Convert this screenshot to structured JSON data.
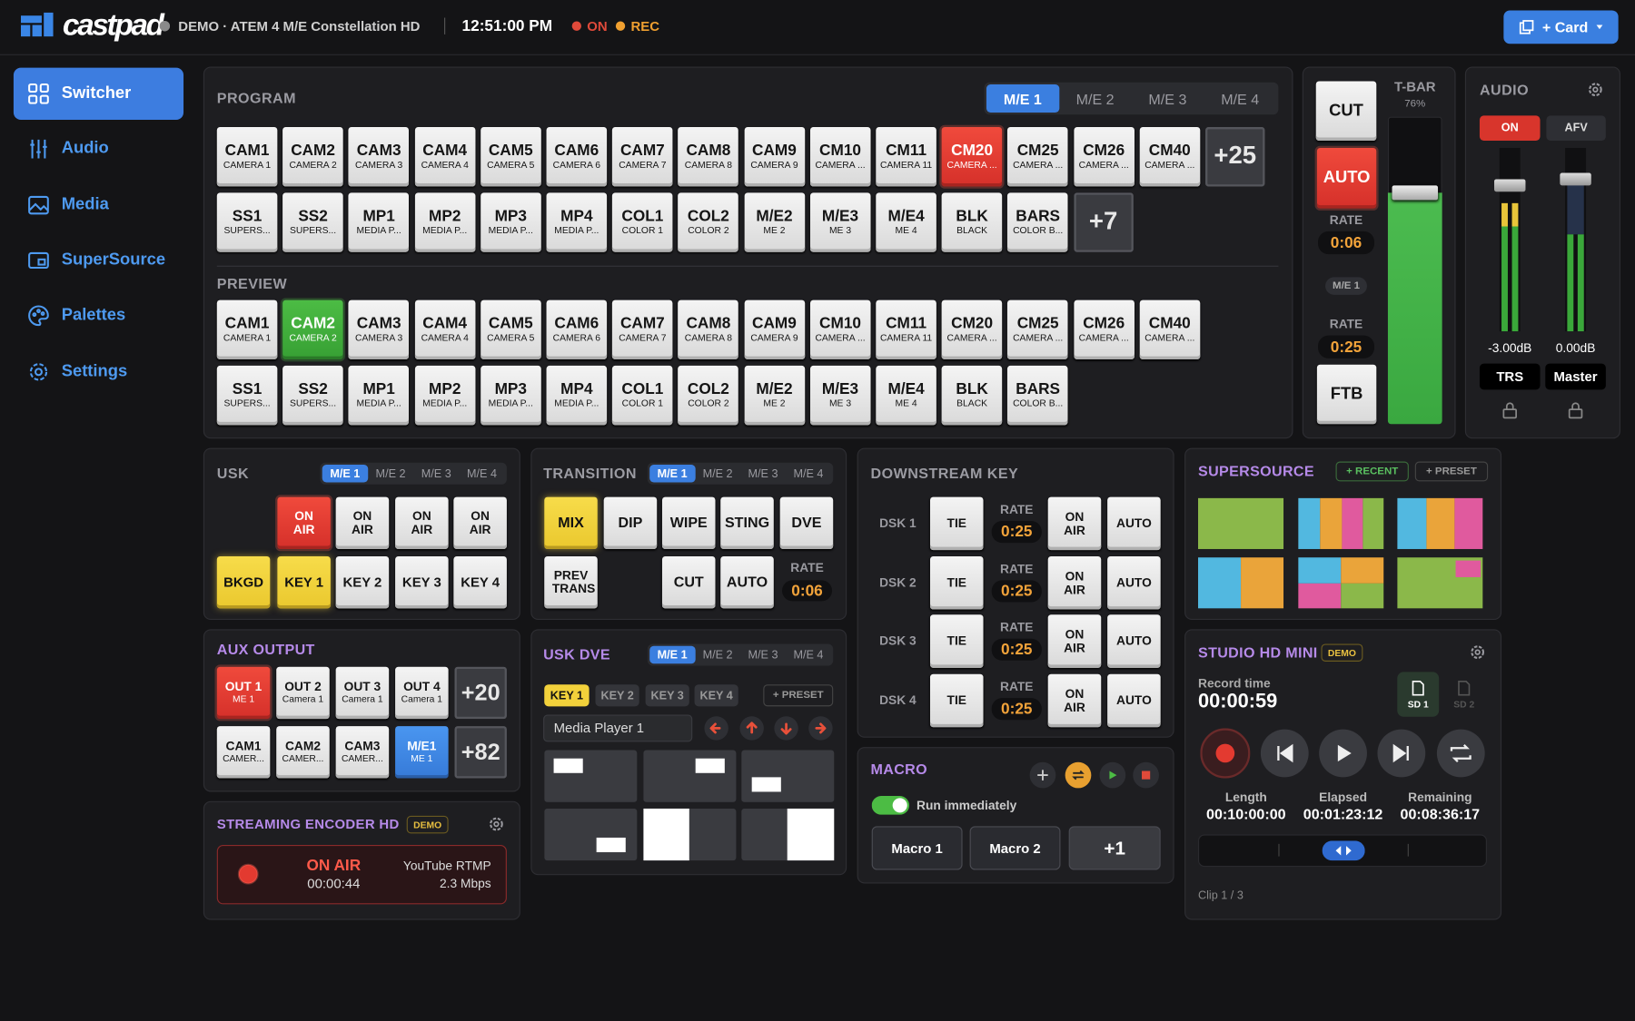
{
  "header": {
    "brand": "castpad",
    "device": "DEMO · ATEM 4 M/E Constellation HD",
    "clock": "12:51:00 PM",
    "on": "ON",
    "rec": "REC",
    "add_card": "+ Card"
  },
  "sidebar": [
    "Switcher",
    "Audio",
    "Media",
    "SuperSource",
    "Palettes",
    "Settings"
  ],
  "program": {
    "title": "PROGRAM",
    "me_tabs": [
      "M/E 1",
      "M/E 2",
      "M/E 3",
      "M/E 4"
    ],
    "row1": [
      [
        "CAM1",
        "CAMERA 1"
      ],
      [
        "CAM2",
        "CAMERA 2"
      ],
      [
        "CAM3",
        "CAMERA 3"
      ],
      [
        "CAM4",
        "CAMERA 4"
      ],
      [
        "CAM5",
        "CAMERA 5"
      ],
      [
        "CAM6",
        "CAMERA 6"
      ],
      [
        "CAM7",
        "CAMERA 7"
      ],
      [
        "CAM8",
        "CAMERA 8"
      ],
      [
        "CAM9",
        "CAMERA 9"
      ],
      [
        "CM10",
        "CAMERA ..."
      ],
      [
        "CM11",
        "CAMERA 11"
      ],
      [
        "CM20",
        "CAMERA ..."
      ],
      [
        "CM25",
        "CAMERA ..."
      ],
      [
        "CM26",
        "CAMERA ..."
      ],
      [
        "CM40",
        "CAMERA ..."
      ]
    ],
    "row1_more": "+25",
    "row2": [
      [
        "SS1",
        "SUPERS..."
      ],
      [
        "SS2",
        "SUPERS..."
      ],
      [
        "MP1",
        "MEDIA P..."
      ],
      [
        "MP2",
        "MEDIA P..."
      ],
      [
        "MP3",
        "MEDIA P..."
      ],
      [
        "MP4",
        "MEDIA P..."
      ],
      [
        "COL1",
        "COLOR 1"
      ],
      [
        "COL2",
        "COLOR 2"
      ],
      [
        "M/E2",
        "ME 2"
      ],
      [
        "M/E3",
        "ME 3"
      ],
      [
        "M/E4",
        "ME 4"
      ],
      [
        "BLK",
        "BLACK"
      ],
      [
        "BARS",
        "COLOR B..."
      ]
    ],
    "row2_more": "+7"
  },
  "preview": {
    "title": "PREVIEW",
    "row1": [
      [
        "CAM1",
        "CAMERA 1"
      ],
      [
        "CAM2",
        "CAMERA 2"
      ],
      [
        "CAM3",
        "CAMERA 3"
      ],
      [
        "CAM4",
        "CAMERA 4"
      ],
      [
        "CAM5",
        "CAMERA 5"
      ],
      [
        "CAM6",
        "CAMERA 6"
      ],
      [
        "CAM7",
        "CAMERA 7"
      ],
      [
        "CAM8",
        "CAMERA 8"
      ],
      [
        "CAM9",
        "CAMERA 9"
      ],
      [
        "CM10",
        "CAMERA ..."
      ],
      [
        "CM11",
        "CAMERA 11"
      ],
      [
        "CM20",
        "CAMERA ..."
      ],
      [
        "CM25",
        "CAMERA ..."
      ],
      [
        "CM26",
        "CAMERA ..."
      ],
      [
        "CM40",
        "CAMERA ..."
      ]
    ],
    "row2": [
      [
        "SS1",
        "SUPERS..."
      ],
      [
        "SS2",
        "SUPERS..."
      ],
      [
        "MP1",
        "MEDIA P..."
      ],
      [
        "MP2",
        "MEDIA P..."
      ],
      [
        "MP3",
        "MEDIA P..."
      ],
      [
        "MP4",
        "MEDIA P..."
      ],
      [
        "COL1",
        "COLOR 1"
      ],
      [
        "COL2",
        "COLOR 2"
      ],
      [
        "M/E2",
        "ME 2"
      ],
      [
        "M/E3",
        "ME 3"
      ],
      [
        "M/E4",
        "ME 4"
      ],
      [
        "BLK",
        "BLACK"
      ],
      [
        "BARS",
        "COLOR B..."
      ]
    ]
  },
  "tbar": {
    "cut": "CUT",
    "label": "T-BAR",
    "position": "76%",
    "auto": "AUTO",
    "rate_label": "RATE",
    "rate": "0:06",
    "me": "M/E 1",
    "ftb_rate_label": "RATE",
    "ftb_rate": "0:25",
    "ftb": "FTB"
  },
  "audio": {
    "title": "AUDIO",
    "on": "ON",
    "afv": "AFV",
    "channels": [
      {
        "level": "-3.00dB",
        "name": "TRS"
      },
      {
        "level": "0.00dB",
        "name": "Master"
      }
    ]
  },
  "usk": {
    "title": "USK",
    "me_tabs": [
      "M/E 1",
      "M/E 2",
      "M/E 3",
      "M/E 4"
    ],
    "on_air": [
      "ON AIR",
      "ON AIR",
      "ON AIR",
      "ON AIR"
    ],
    "keys": [
      "BKGD",
      "KEY 1",
      "KEY 2",
      "KEY 3",
      "KEY 4"
    ]
  },
  "transition": {
    "title": "TRANSITION",
    "me_tabs": [
      "M/E 1",
      "M/E 2",
      "M/E 3",
      "M/E 4"
    ],
    "styles": [
      "MIX",
      "DIP",
      "WIPE",
      "STING",
      "DVE"
    ],
    "prev_trans": "PREV TRANS",
    "cut": "CUT",
    "auto": "AUTO",
    "rate_label": "RATE",
    "rate": "0:06"
  },
  "dsk": {
    "title": "DOWNSTREAM KEY",
    "rows": [
      {
        "name": "DSK 1",
        "tie": "TIE",
        "rate_label": "RATE",
        "rate": "0:25",
        "on_air": "ON AIR",
        "auto": "AUTO"
      },
      {
        "name": "DSK 2",
        "tie": "TIE",
        "rate_label": "RATE",
        "rate": "0:25",
        "on_air": "ON AIR",
        "auto": "AUTO"
      },
      {
        "name": "DSK 3",
        "tie": "TIE",
        "rate_label": "RATE",
        "rate": "0:25",
        "on_air": "ON AIR",
        "auto": "AUTO"
      },
      {
        "name": "DSK 4",
        "tie": "TIE",
        "rate_label": "RATE",
        "rate": "0:25",
        "on_air": "ON AIR",
        "auto": "AUTO"
      }
    ]
  },
  "supersource": {
    "title": "SUPERSOURCE",
    "recent": "+ RECENT",
    "preset": "+ PRESET"
  },
  "aux": {
    "title": "AUX OUTPUT",
    "outputs": [
      [
        "OUT 1",
        "ME 1"
      ],
      [
        "OUT 2",
        "Camera 1"
      ],
      [
        "OUT 3",
        "Camera 1"
      ],
      [
        "OUT 4",
        "Camera 1"
      ]
    ],
    "outputs_more": "+20",
    "sources": [
      [
        "CAM1",
        "CAMER..."
      ],
      [
        "CAM2",
        "CAMER..."
      ],
      [
        "CAM3",
        "CAMER..."
      ],
      [
        "M/E1",
        "ME 1"
      ]
    ],
    "sources_more": "+82"
  },
  "streaming": {
    "title": "STREAMING ENCODER HD",
    "badge": "DEMO",
    "status": "ON AIR",
    "duration": "00:00:44",
    "service": "YouTube RTMP",
    "bitrate": "2.3 Mbps"
  },
  "usk_dve": {
    "title": "USK DVE",
    "me_tabs": [
      "M/E 1",
      "M/E 2",
      "M/E 3",
      "M/E 4"
    ],
    "keys": [
      "KEY 1",
      "KEY 2",
      "KEY 3",
      "KEY 4"
    ],
    "preset": "+ PRESET",
    "source": "Media Player 1"
  },
  "macro": {
    "title": "MACRO",
    "run_immediately": "Run immediately",
    "buttons": [
      "Macro 1",
      "Macro 2",
      "+1"
    ]
  },
  "studio": {
    "title": "STUDIO HD MINI",
    "badge": "DEMO",
    "record_label": "Record time",
    "record_time": "00:00:59",
    "cards": [
      "SD 1",
      "SD 2"
    ],
    "stats": [
      {
        "label": "Length",
        "value": "00:10:00:00"
      },
      {
        "label": "Elapsed",
        "value": "00:01:23:12"
      },
      {
        "label": "Remaining",
        "value": "00:08:36:17"
      }
    ],
    "clip": "Clip 1 / 3"
  }
}
